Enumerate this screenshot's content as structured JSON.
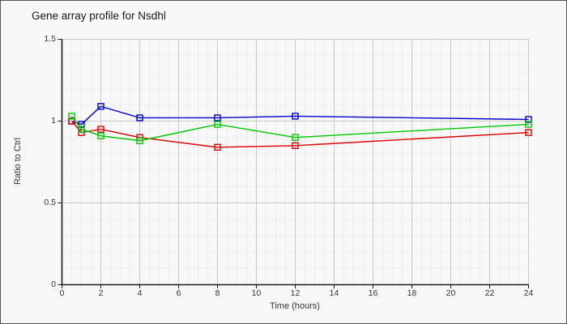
{
  "header": {
    "title": "Gene array profile for Nsdhl"
  },
  "chart_data": {
    "type": "line",
    "title": "Gene array profile for Nsdhl",
    "xlabel": "Time (hours)",
    "ylabel": "Ratio to Ctrl",
    "x": [
      0.5,
      1,
      2,
      4,
      8,
      12,
      24
    ],
    "series": [
      {
        "name": "blue",
        "color": "#0000cc",
        "values": [
          1.0,
          0.98,
          1.09,
          1.02,
          1.02,
          1.03,
          1.01
        ]
      },
      {
        "name": "red",
        "color": "#dd0000",
        "values": [
          1.0,
          0.93,
          0.95,
          0.9,
          0.84,
          0.85,
          0.93
        ]
      },
      {
        "name": "green",
        "color": "#00c800",
        "values": [
          1.03,
          0.95,
          0.91,
          0.88,
          0.98,
          0.9,
          0.98
        ]
      }
    ],
    "xlim": [
      0,
      24
    ],
    "ylim": [
      0,
      1.5
    ],
    "x_major_ticks": [
      0,
      2,
      4,
      6,
      8,
      10,
      12,
      14,
      16,
      18,
      20,
      22,
      24
    ],
    "x_tick_labels": [
      "0",
      "2",
      "4",
      "6",
      "8",
      "10",
      "12",
      "14",
      "16",
      "18",
      "20",
      "22",
      "24"
    ],
    "y_major_ticks": [
      0,
      0.5,
      1,
      1.5
    ],
    "y_tick_labels": [
      "0",
      "0.5",
      "1",
      "1.5"
    ],
    "x_minor_step": 0.5,
    "y_minor_step": 0.1,
    "marker": "open-square",
    "grid": true,
    "legend": "none",
    "colors": {
      "grid_minor": "#ededed",
      "grid_major": "#c9c9c9",
      "axis": "#1a1a1a",
      "text": "#333333",
      "background": "#f8f8f8"
    }
  }
}
